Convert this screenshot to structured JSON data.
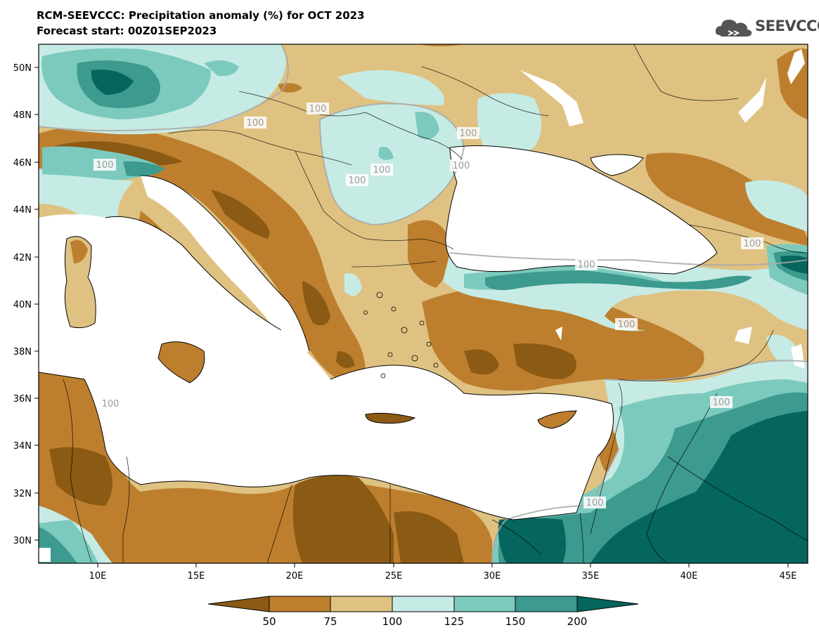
{
  "header": {
    "title": "RCM-SEEVCCC: Precipitation anomaly (%) for OCT 2023",
    "subtitle": "Forecast start: 00Z01SEP2023"
  },
  "logo": {
    "text": "SEEVCCC",
    "icon": "cloud-icon"
  },
  "map": {
    "lon_ticks": [
      "10E",
      "15E",
      "20E",
      "25E",
      "30E",
      "35E",
      "40E",
      "45E"
    ],
    "lat_ticks": [
      "50N",
      "48N",
      "46N",
      "44N",
      "42N",
      "40N",
      "38N",
      "36N",
      "34N",
      "32N",
      "30N"
    ],
    "contour_labels": [
      "100",
      "100",
      "100",
      "100",
      "100",
      "100",
      "100",
      "100",
      "100",
      "100",
      "100",
      "100",
      "100"
    ]
  },
  "colorbar": {
    "labels": [
      "50",
      "75",
      "100",
      "125",
      "150",
      "200"
    ],
    "colors": [
      "#8b5a14",
      "#bd7f2e",
      "#dfc282",
      "#c6ebe4",
      "#7ccabd",
      "#3c9a8e",
      "#05665e"
    ]
  }
}
